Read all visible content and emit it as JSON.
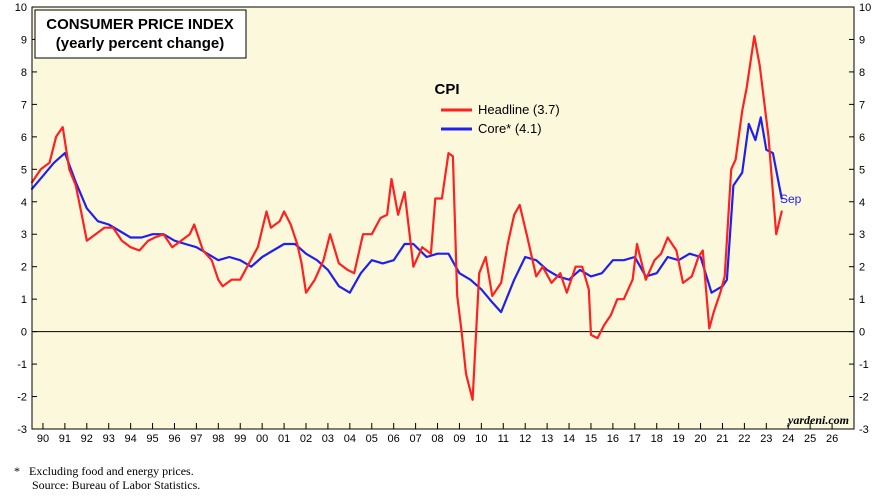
{
  "chart_data": {
    "type": "line",
    "title": "CONSUMER PRICE INDEX",
    "subtitle": "(yearly percent change)",
    "legend_title": "CPI",
    "legend_position": "top-center",
    "ylim": [
      -3,
      10
    ],
    "xlim": [
      1989.5,
      2027.0
    ],
    "y_ticks": [
      "-3",
      "-2",
      "-1",
      "0",
      "1",
      "2",
      "3",
      "4",
      "5",
      "6",
      "7",
      "8",
      "9",
      "10"
    ],
    "x_tick_labels": [
      "90",
      "91",
      "92",
      "93",
      "94",
      "95",
      "96",
      "97",
      "98",
      "99",
      "00",
      "01",
      "02",
      "03",
      "04",
      "05",
      "06",
      "07",
      "08",
      "09",
      "10",
      "11",
      "12",
      "13",
      "14",
      "15",
      "16",
      "17",
      "18",
      "19",
      "20",
      "21",
      "22",
      "23",
      "24",
      "25",
      "26"
    ],
    "zero_line": true,
    "grid": false,
    "background_color": "#fcf8dc",
    "end_annotation": "Sep",
    "watermark": "yardeni.com",
    "series": [
      {
        "name": "Headline (3.7)",
        "color": "#ff2020",
        "x": [
          1989.5,
          1989.9,
          1990.3,
          1990.6,
          1990.9,
          1991.2,
          1991.5,
          1991.8,
          1992.0,
          1992.4,
          1992.8,
          1993.2,
          1993.6,
          1994.0,
          1994.4,
          1994.8,
          1995.1,
          1995.5,
          1995.9,
          1996.3,
          1996.7,
          1996.9,
          1997.3,
          1997.7,
          1998.0,
          1998.2,
          1998.6,
          1999.0,
          1999.4,
          1999.8,
          2000.2,
          2000.4,
          2000.8,
          2001.0,
          2001.3,
          2001.6,
          2001.8,
          2002.0,
          2002.4,
          2002.8,
          2003.1,
          2003.5,
          2003.9,
          2004.2,
          2004.6,
          2005.0,
          2005.4,
          2005.7,
          2005.9,
          2006.2,
          2006.5,
          2006.9,
          2007.3,
          2007.7,
          2007.9,
          2008.2,
          2008.5,
          2008.7,
          2008.9,
          2009.1,
          2009.3,
          2009.6,
          2009.9,
          2010.2,
          2010.5,
          2010.9,
          2011.2,
          2011.5,
          2011.75,
          2012.1,
          2012.5,
          2012.8,
          2013.2,
          2013.6,
          2013.9,
          2014.3,
          2014.6,
          2014.9,
          2015.0,
          2015.3,
          2015.6,
          2015.9,
          2016.2,
          2016.5,
          2016.9,
          2017.1,
          2017.5,
          2017.9,
          2018.2,
          2018.5,
          2018.9,
          2019.2,
          2019.6,
          2019.9,
          2020.1,
          2020.4,
          2020.6,
          2020.9,
          2021.1,
          2021.4,
          2021.6,
          2021.9,
          2022.1,
          2022.45,
          2022.7,
          2022.9,
          2023.1,
          2023.45,
          2023.7
        ],
        "y": [
          4.6,
          5.0,
          5.2,
          6.0,
          6.3,
          5.0,
          4.5,
          3.5,
          2.8,
          3.0,
          3.2,
          3.2,
          2.8,
          2.6,
          2.5,
          2.8,
          2.9,
          3.0,
          2.6,
          2.8,
          3.0,
          3.3,
          2.5,
          2.2,
          1.6,
          1.4,
          1.6,
          1.6,
          2.1,
          2.6,
          3.7,
          3.2,
          3.4,
          3.7,
          3.3,
          2.7,
          2.1,
          1.2,
          1.6,
          2.2,
          3.0,
          2.1,
          1.9,
          1.8,
          3.0,
          3.0,
          3.5,
          3.6,
          4.7,
          3.6,
          4.3,
          2.0,
          2.6,
          2.4,
          4.1,
          4.1,
          5.5,
          5.4,
          1.1,
          0.0,
          -1.3,
          -2.1,
          1.8,
          2.3,
          1.1,
          1.5,
          2.7,
          3.6,
          3.9,
          2.9,
          1.7,
          2.0,
          1.5,
          1.8,
          1.2,
          2.0,
          2.0,
          1.3,
          -0.1,
          -0.2,
          0.2,
          0.5,
          1.0,
          1.0,
          1.6,
          2.7,
          1.6,
          2.2,
          2.4,
          2.9,
          2.5,
          1.5,
          1.7,
          2.3,
          2.5,
          0.1,
          0.6,
          1.2,
          1.7,
          5.0,
          5.3,
          6.8,
          7.5,
          9.1,
          8.2,
          7.1,
          6.0,
          3.0,
          3.7
        ]
      },
      {
        "name": "Core* (4.1)",
        "color": "#2020ee",
        "x": [
          1989.5,
          1990.0,
          1990.5,
          1991.0,
          1991.5,
          1992.0,
          1992.5,
          1993.0,
          1993.5,
          1994.0,
          1994.5,
          1995.0,
          1995.5,
          1996.0,
          1996.5,
          1997.0,
          1997.5,
          1998.0,
          1998.5,
          1999.0,
          1999.5,
          2000.0,
          2000.5,
          2001.0,
          2001.5,
          2002.0,
          2002.5,
          2003.0,
          2003.5,
          2004.0,
          2004.5,
          2005.0,
          2005.5,
          2006.0,
          2006.5,
          2006.9,
          2007.5,
          2008.0,
          2008.5,
          2009.0,
          2009.5,
          2010.0,
          2010.5,
          2010.9,
          2011.5,
          2012.0,
          2012.5,
          2013.0,
          2013.5,
          2014.0,
          2014.5,
          2015.0,
          2015.5,
          2016.0,
          2016.5,
          2017.0,
          2017.5,
          2018.0,
          2018.5,
          2019.0,
          2019.5,
          2020.0,
          2020.5,
          2021.0,
          2021.2,
          2021.5,
          2021.9,
          2022.2,
          2022.5,
          2022.75,
          2023.0,
          2023.3,
          2023.7
        ],
        "y": [
          4.4,
          4.8,
          5.2,
          5.5,
          4.6,
          3.8,
          3.4,
          3.3,
          3.1,
          2.9,
          2.9,
          3.0,
          3.0,
          2.8,
          2.7,
          2.6,
          2.4,
          2.2,
          2.3,
          2.2,
          2.0,
          2.3,
          2.5,
          2.7,
          2.7,
          2.4,
          2.2,
          1.9,
          1.4,
          1.2,
          1.8,
          2.2,
          2.1,
          2.2,
          2.7,
          2.7,
          2.3,
          2.4,
          2.4,
          1.8,
          1.6,
          1.3,
          0.9,
          0.6,
          1.6,
          2.3,
          2.2,
          1.9,
          1.7,
          1.6,
          1.9,
          1.7,
          1.8,
          2.2,
          2.2,
          2.3,
          1.7,
          1.8,
          2.3,
          2.2,
          2.4,
          2.3,
          1.2,
          1.4,
          1.6,
          4.5,
          4.9,
          6.4,
          5.9,
          6.6,
          5.6,
          5.5,
          4.1
        ]
      }
    ]
  },
  "footnotes": {
    "star": "*",
    "line1": "Excluding food and energy prices.",
    "line2": "Source: Bureau of Labor Statistics."
  }
}
